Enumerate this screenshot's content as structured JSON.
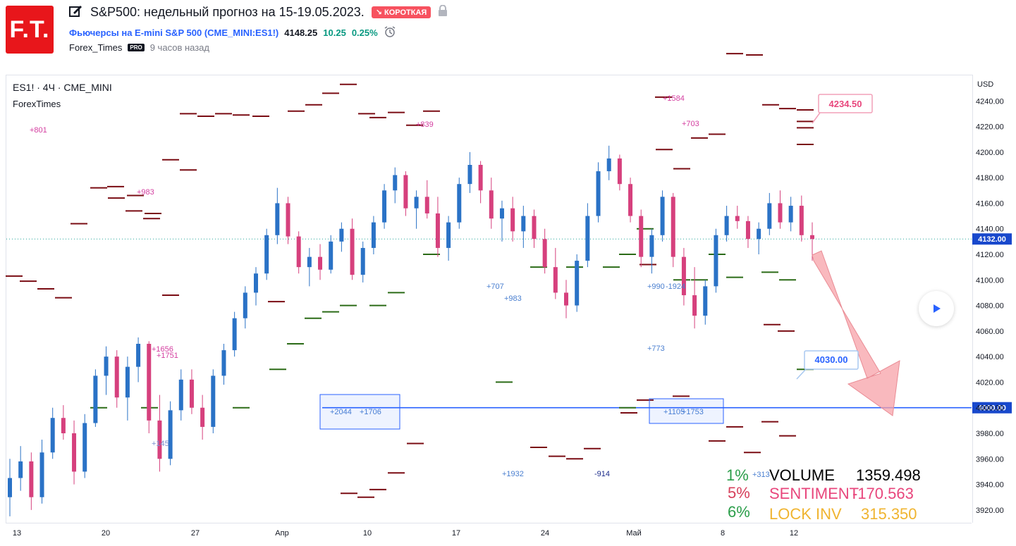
{
  "header": {
    "logo_text": "F.T.",
    "title": "S&P500: недельный прогноз на 15-19.05.2023.",
    "badge": "↘ КОРОТКАЯ",
    "symbol_name": "Фьючерсы на E-mini S&P 500",
    "symbol_code": "(CME_MINI:ES1!)",
    "price": "4148.25",
    "change": "10.25",
    "change_pct": "0.25%",
    "author": "Forex_Times",
    "pro_badge": "PRO",
    "time_ago": "9 часов назад"
  },
  "chart": {
    "symbol_info": "ES1! · 4Ч · CME_MINI",
    "indicator_name": "ForexTimes",
    "currency": "USD",
    "last_price_label": "4132.00",
    "level_label": "4000.00",
    "callout_high": "4234.50",
    "callout_low": "4030.00",
    "colors": {
      "up": "#2a72c6",
      "down": "#d6407d",
      "resistance": "#7a0c13",
      "support": "#2b6b17",
      "level": "#2962ff",
      "arrow": "#f7a1a8"
    }
  },
  "chart_data": {
    "type": "candlestick",
    "ylim": [
      3910,
      4260
    ],
    "y_ticks": [
      "4240.00",
      "4220.00",
      "4200.00",
      "4180.00",
      "4160.00",
      "4140.00",
      "4120.00",
      "4100.00",
      "4080.00",
      "4060.00",
      "4040.00",
      "4020.00",
      "4000.00",
      "3980.00",
      "3960.00",
      "3940.00",
      "3920.00"
    ],
    "x_ticks": [
      "13",
      "20",
      "27",
      "Апр",
      "10",
      "17",
      "24",
      "Май",
      "8",
      "12"
    ],
    "ohlc": [
      [
        3930,
        3960,
        3915,
        3945
      ],
      [
        3945,
        3970,
        3935,
        3958
      ],
      [
        3958,
        3965,
        3920,
        3930
      ],
      [
        3930,
        3975,
        3925,
        3965
      ],
      [
        3965,
        4000,
        3960,
        3992
      ],
      [
        3992,
        4002,
        3975,
        3980
      ],
      [
        3980,
        3990,
        3940,
        3950
      ],
      [
        3950,
        3995,
        3945,
        3988
      ],
      [
        3988,
        4030,
        3985,
        4025
      ],
      [
        4025,
        4048,
        4010,
        4040
      ],
      [
        4040,
        4045,
        4000,
        4008
      ],
      [
        4008,
        4040,
        3990,
        4032
      ],
      [
        4032,
        4055,
        4020,
        4050
      ],
      [
        4050,
        4052,
        3980,
        3990
      ],
      [
        3990,
        4010,
        3950,
        3960
      ],
      [
        3960,
        4005,
        3955,
        3998
      ],
      [
        3998,
        4030,
        3990,
        4022
      ],
      [
        4022,
        4030,
        3995,
        4000
      ],
      [
        4000,
        4010,
        3975,
        3985
      ],
      [
        3985,
        4030,
        3980,
        4025
      ],
      [
        4025,
        4050,
        4018,
        4045
      ],
      [
        4045,
        4075,
        4040,
        4070
      ],
      [
        4070,
        4095,
        4062,
        4090
      ],
      [
        4090,
        4110,
        4080,
        4105
      ],
      [
        4105,
        4140,
        4100,
        4135
      ],
      [
        4135,
        4172,
        4128,
        4160
      ],
      [
        4160,
        4165,
        4128,
        4134
      ],
      [
        4134,
        4138,
        4105,
        4110
      ],
      [
        4110,
        4125,
        4095,
        4118
      ],
      [
        4118,
        4128,
        4100,
        4108
      ],
      [
        4108,
        4135,
        4105,
        4130
      ],
      [
        4130,
        4145,
        4122,
        4140
      ],
      [
        4140,
        4148,
        4100,
        4104
      ],
      [
        4104,
        4130,
        4098,
        4125
      ],
      [
        4125,
        4150,
        4120,
        4145
      ],
      [
        4145,
        4175,
        4140,
        4170
      ],
      [
        4170,
        4188,
        4160,
        4182
      ],
      [
        4182,
        4185,
        4150,
        4156
      ],
      [
        4156,
        4170,
        4140,
        4165
      ],
      [
        4165,
        4178,
        4148,
        4152
      ],
      [
        4152,
        4165,
        4118,
        4125
      ],
      [
        4125,
        4150,
        4115,
        4145
      ],
      [
        4145,
        4180,
        4140,
        4175
      ],
      [
        4175,
        4200,
        4168,
        4190
      ],
      [
        4190,
        4193,
        4160,
        4170
      ],
      [
        4170,
        4180,
        4140,
        4148
      ],
      [
        4148,
        4162,
        4130,
        4156
      ],
      [
        4156,
        4165,
        4130,
        4138
      ],
      [
        4138,
        4158,
        4125,
        4150
      ],
      [
        4150,
        4155,
        4125,
        4132
      ],
      [
        4132,
        4140,
        4105,
        4110
      ],
      [
        4110,
        4125,
        4085,
        4090
      ],
      [
        4090,
        4100,
        4070,
        4080
      ],
      [
        4080,
        4120,
        4075,
        4115
      ],
      [
        4115,
        4160,
        4110,
        4150
      ],
      [
        4150,
        4192,
        4145,
        4185
      ],
      [
        4185,
        4205,
        4178,
        4195
      ],
      [
        4195,
        4198,
        4170,
        4175
      ],
      [
        4175,
        4180,
        4145,
        4150
      ],
      [
        4150,
        4155,
        4110,
        4118
      ],
      [
        4118,
        4140,
        4105,
        4135
      ],
      [
        4135,
        4170,
        4130,
        4165
      ],
      [
        4165,
        4168,
        4110,
        4118
      ],
      [
        4118,
        4125,
        4080,
        4088
      ],
      [
        4088,
        4110,
        4062,
        4072
      ],
      [
        4072,
        4100,
        4065,
        4095
      ],
      [
        4095,
        4140,
        4090,
        4135
      ],
      [
        4135,
        4158,
        4130,
        4150
      ],
      [
        4150,
        4158,
        4140,
        4146
      ],
      [
        4146,
        4150,
        4125,
        4132
      ],
      [
        4132,
        4145,
        4120,
        4140
      ],
      [
        4140,
        4168,
        4135,
        4160
      ],
      [
        4160,
        4170,
        4140,
        4145
      ],
      [
        4145,
        4165,
        4138,
        4158
      ],
      [
        4158,
        4166,
        4130,
        4135
      ],
      [
        4135,
        4145,
        4115,
        4132
      ]
    ],
    "resistance_levels": [
      4103,
      4099,
      4093,
      4086,
      4172,
      4164,
      4154,
      4148,
      4230,
      4228,
      4230,
      4229,
      4228,
      4232,
      4237,
      4246,
      4253,
      4230,
      4227,
      4231,
      4221,
      4232,
      4194,
      4186,
      4173,
      4166,
      4152,
      4144,
      4088,
      4083,
      4112,
      4065,
      4060,
      4243,
      4211,
      4214,
      4277,
      4276,
      4237,
      4234,
      4219,
      4224,
      4202,
      4187,
      3933,
      3930,
      3936,
      3949,
      3972,
      3969,
      3962,
      3960,
      3968,
      3996,
      4006,
      4009,
      3974,
      3985,
      3965,
      3989,
      3978,
      4233,
      4206
    ],
    "support_levels": [
      4000,
      4000,
      4000,
      4030,
      4050,
      4070,
      4075,
      4080,
      4080,
      4090,
      4120,
      4110,
      4110,
      4110,
      4000,
      4140,
      4120,
      4020,
      4100,
      4100,
      4120,
      4102,
      4106,
      4100,
      4030
    ],
    "horizontal_level": 4000,
    "labels": [
      "+801",
      "+983",
      "+1656",
      "+1751",
      "+145",
      "+839",
      "+707",
      "+983",
      "+2044",
      "+1706",
      "+1932",
      "-914",
      "+1584",
      "+703",
      "+990",
      "-1924",
      "+773",
      "+1105",
      "+1753",
      "+313"
    ]
  },
  "stats": {
    "volume_label": "VOLUME",
    "volume_value": "1359.498",
    "volume_pct": "1%",
    "sentiment_label": "SENTIMENT",
    "sentiment_value": "-170.563",
    "sentiment_pct": "5%",
    "lockinv_label": "LOCK INV",
    "lockinv_value": "315.350",
    "lockinv_pct": "6%"
  }
}
